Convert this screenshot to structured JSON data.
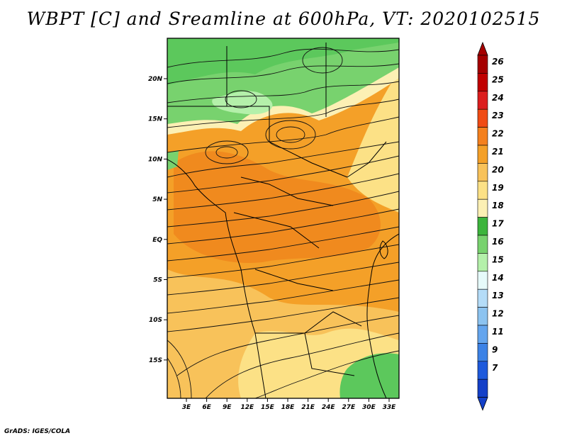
{
  "title": "WBPT [C] and Sreamline at 600hPa, VT: 2020102515",
  "credit": "GrADS: IGES/COLA",
  "axes": {
    "lat_ticks": [
      "20N",
      "15N",
      "10N",
      "5N",
      "EQ",
      "5S",
      "10S",
      "15S"
    ],
    "lon_ticks": [
      "3E",
      "6E",
      "9E",
      "12E",
      "15E",
      "18E",
      "21E",
      "24E",
      "27E",
      "30E",
      "33E"
    ]
  },
  "colorbar": {
    "labels": [
      "26",
      "25",
      "24",
      "23",
      "22",
      "21",
      "20",
      "19",
      "18",
      "17",
      "16",
      "15",
      "14",
      "13",
      "12",
      "11",
      "9",
      "7"
    ],
    "colors": [
      "#a50000",
      "#c00000",
      "#dc1e1e",
      "#f04b14",
      "#f4801e",
      "#f4a028",
      "#f8c25a",
      "#fce186",
      "#fcf0b4",
      "#3cb43c",
      "#78d26e",
      "#b4f0aa",
      "#e6fafa",
      "#b4dcf8",
      "#8cc3f0",
      "#64a5ee",
      "#3c82e6",
      "#1e5adc",
      "#1440c8"
    ],
    "top_arrow_color": "#a50000",
    "bottom_arrow_color": "#1440c8"
  },
  "map_colors": {
    "green_dark": "#5cc85c",
    "green_light": "#8fe08a",
    "pale": "#fce186",
    "cream": "#fcf0b4",
    "orange": "#f4a028",
    "orange_light": "#f8c25a",
    "deep_orange": "#f08a1e"
  }
}
